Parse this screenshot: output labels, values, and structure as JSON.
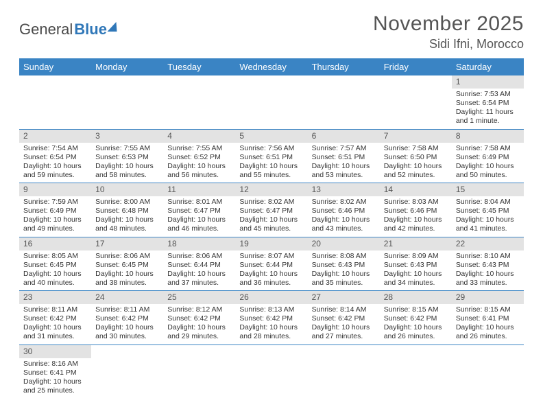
{
  "logo": {
    "general": "General",
    "blue": "Blue"
  },
  "title": "November 2025",
  "location": "Sidi Ifni, Morocco",
  "colors": {
    "header_bg": "#3a84c4",
    "header_text": "#ffffff",
    "daybar_bg": "#e3e3e3",
    "border": "#3a84c4"
  },
  "weekdays": [
    "Sunday",
    "Monday",
    "Tuesday",
    "Wednesday",
    "Thursday",
    "Friday",
    "Saturday"
  ],
  "weeks": [
    [
      null,
      null,
      null,
      null,
      null,
      null,
      {
        "n": "1",
        "sr": "Sunrise: 7:53 AM",
        "ss": "Sunset: 6:54 PM",
        "dl": "Daylight: 11 hours and 1 minute."
      }
    ],
    [
      {
        "n": "2",
        "sr": "Sunrise: 7:54 AM",
        "ss": "Sunset: 6:54 PM",
        "dl": "Daylight: 10 hours and 59 minutes."
      },
      {
        "n": "3",
        "sr": "Sunrise: 7:55 AM",
        "ss": "Sunset: 6:53 PM",
        "dl": "Daylight: 10 hours and 58 minutes."
      },
      {
        "n": "4",
        "sr": "Sunrise: 7:55 AM",
        "ss": "Sunset: 6:52 PM",
        "dl": "Daylight: 10 hours and 56 minutes."
      },
      {
        "n": "5",
        "sr": "Sunrise: 7:56 AM",
        "ss": "Sunset: 6:51 PM",
        "dl": "Daylight: 10 hours and 55 minutes."
      },
      {
        "n": "6",
        "sr": "Sunrise: 7:57 AM",
        "ss": "Sunset: 6:51 PM",
        "dl": "Daylight: 10 hours and 53 minutes."
      },
      {
        "n": "7",
        "sr": "Sunrise: 7:58 AM",
        "ss": "Sunset: 6:50 PM",
        "dl": "Daylight: 10 hours and 52 minutes."
      },
      {
        "n": "8",
        "sr": "Sunrise: 7:58 AM",
        "ss": "Sunset: 6:49 PM",
        "dl": "Daylight: 10 hours and 50 minutes."
      }
    ],
    [
      {
        "n": "9",
        "sr": "Sunrise: 7:59 AM",
        "ss": "Sunset: 6:49 PM",
        "dl": "Daylight: 10 hours and 49 minutes."
      },
      {
        "n": "10",
        "sr": "Sunrise: 8:00 AM",
        "ss": "Sunset: 6:48 PM",
        "dl": "Daylight: 10 hours and 48 minutes."
      },
      {
        "n": "11",
        "sr": "Sunrise: 8:01 AM",
        "ss": "Sunset: 6:47 PM",
        "dl": "Daylight: 10 hours and 46 minutes."
      },
      {
        "n": "12",
        "sr": "Sunrise: 8:02 AM",
        "ss": "Sunset: 6:47 PM",
        "dl": "Daylight: 10 hours and 45 minutes."
      },
      {
        "n": "13",
        "sr": "Sunrise: 8:02 AM",
        "ss": "Sunset: 6:46 PM",
        "dl": "Daylight: 10 hours and 43 minutes."
      },
      {
        "n": "14",
        "sr": "Sunrise: 8:03 AM",
        "ss": "Sunset: 6:46 PM",
        "dl": "Daylight: 10 hours and 42 minutes."
      },
      {
        "n": "15",
        "sr": "Sunrise: 8:04 AM",
        "ss": "Sunset: 6:45 PM",
        "dl": "Daylight: 10 hours and 41 minutes."
      }
    ],
    [
      {
        "n": "16",
        "sr": "Sunrise: 8:05 AM",
        "ss": "Sunset: 6:45 PM",
        "dl": "Daylight: 10 hours and 40 minutes."
      },
      {
        "n": "17",
        "sr": "Sunrise: 8:06 AM",
        "ss": "Sunset: 6:45 PM",
        "dl": "Daylight: 10 hours and 38 minutes."
      },
      {
        "n": "18",
        "sr": "Sunrise: 8:06 AM",
        "ss": "Sunset: 6:44 PM",
        "dl": "Daylight: 10 hours and 37 minutes."
      },
      {
        "n": "19",
        "sr": "Sunrise: 8:07 AM",
        "ss": "Sunset: 6:44 PM",
        "dl": "Daylight: 10 hours and 36 minutes."
      },
      {
        "n": "20",
        "sr": "Sunrise: 8:08 AM",
        "ss": "Sunset: 6:43 PM",
        "dl": "Daylight: 10 hours and 35 minutes."
      },
      {
        "n": "21",
        "sr": "Sunrise: 8:09 AM",
        "ss": "Sunset: 6:43 PM",
        "dl": "Daylight: 10 hours and 34 minutes."
      },
      {
        "n": "22",
        "sr": "Sunrise: 8:10 AM",
        "ss": "Sunset: 6:43 PM",
        "dl": "Daylight: 10 hours and 33 minutes."
      }
    ],
    [
      {
        "n": "23",
        "sr": "Sunrise: 8:11 AM",
        "ss": "Sunset: 6:42 PM",
        "dl": "Daylight: 10 hours and 31 minutes."
      },
      {
        "n": "24",
        "sr": "Sunrise: 8:11 AM",
        "ss": "Sunset: 6:42 PM",
        "dl": "Daylight: 10 hours and 30 minutes."
      },
      {
        "n": "25",
        "sr": "Sunrise: 8:12 AM",
        "ss": "Sunset: 6:42 PM",
        "dl": "Daylight: 10 hours and 29 minutes."
      },
      {
        "n": "26",
        "sr": "Sunrise: 8:13 AM",
        "ss": "Sunset: 6:42 PM",
        "dl": "Daylight: 10 hours and 28 minutes."
      },
      {
        "n": "27",
        "sr": "Sunrise: 8:14 AM",
        "ss": "Sunset: 6:42 PM",
        "dl": "Daylight: 10 hours and 27 minutes."
      },
      {
        "n": "28",
        "sr": "Sunrise: 8:15 AM",
        "ss": "Sunset: 6:42 PM",
        "dl": "Daylight: 10 hours and 26 minutes."
      },
      {
        "n": "29",
        "sr": "Sunrise: 8:15 AM",
        "ss": "Sunset: 6:41 PM",
        "dl": "Daylight: 10 hours and 26 minutes."
      }
    ],
    [
      {
        "n": "30",
        "sr": "Sunrise: 8:16 AM",
        "ss": "Sunset: 6:41 PM",
        "dl": "Daylight: 10 hours and 25 minutes."
      },
      null,
      null,
      null,
      null,
      null,
      null
    ]
  ]
}
